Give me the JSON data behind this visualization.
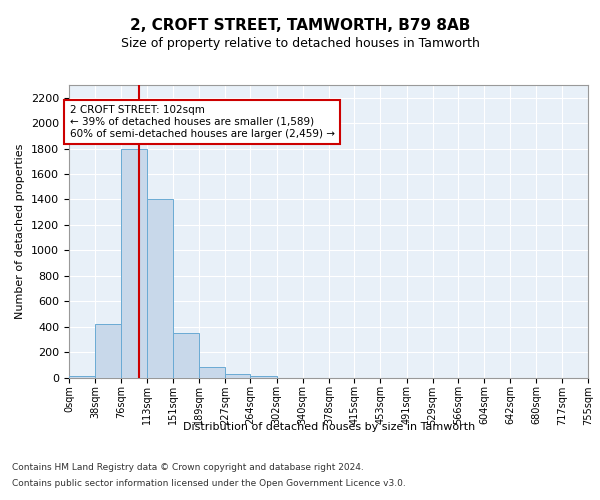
{
  "title": "2, CROFT STREET, TAMWORTH, B79 8AB",
  "subtitle": "Size of property relative to detached houses in Tamworth",
  "xlabel": "Distribution of detached houses by size in Tamworth",
  "ylabel": "Number of detached properties",
  "bin_edges": [
    0,
    38,
    76,
    113,
    151,
    189,
    227,
    264,
    302,
    340,
    378,
    415,
    453,
    491,
    529,
    566,
    604,
    642,
    680,
    717,
    755
  ],
  "bin_counts": [
    15,
    420,
    1800,
    1400,
    350,
    80,
    30,
    15,
    0,
    0,
    0,
    0,
    0,
    0,
    0,
    0,
    0,
    0,
    0,
    0
  ],
  "bar_color": "#c8d8ea",
  "bar_edge_color": "#6aaad4",
  "vline_x": 102,
  "vline_color": "#cc0000",
  "annotation_text": "2 CROFT STREET: 102sqm\n← 39% of detached houses are smaller (1,589)\n60% of semi-detached houses are larger (2,459) →",
  "annotation_box_color": "#ffffff",
  "annotation_box_edge": "#cc0000",
  "ylim": [
    0,
    2300
  ],
  "yticks": [
    0,
    200,
    400,
    600,
    800,
    1000,
    1200,
    1400,
    1600,
    1800,
    2000,
    2200
  ],
  "tick_labels": [
    "0sqm",
    "38sqm",
    "76sqm",
    "113sqm",
    "151sqm",
    "189sqm",
    "227sqm",
    "264sqm",
    "302sqm",
    "340sqm",
    "378sqm",
    "415sqm",
    "453sqm",
    "491sqm",
    "529sqm",
    "566sqm",
    "604sqm",
    "642sqm",
    "680sqm",
    "717sqm",
    "755sqm"
  ],
  "footer_line1": "Contains HM Land Registry data © Crown copyright and database right 2024.",
  "footer_line2": "Contains public sector information licensed under the Open Government Licence v3.0.",
  "background_color": "#e8f0f8",
  "grid_color": "#ffffff",
  "fig_background": "#ffffff"
}
